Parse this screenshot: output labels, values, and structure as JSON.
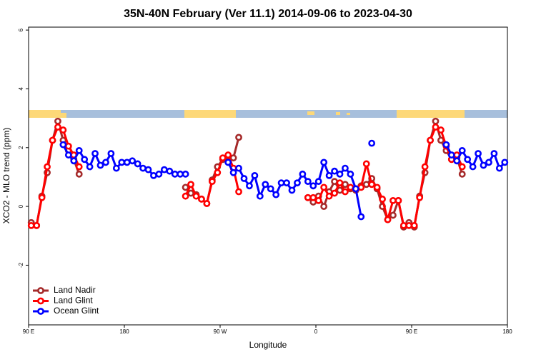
{
  "chart_data": {
    "type": "line",
    "title": "35N-40N February (Ver 11.1)   2014-09-06 to 2023-04-30",
    "x_label": "Longitude",
    "y_label": "XCO2 - MLO trend (ppm)",
    "x": [
      92.5,
      97.5,
      102.5,
      107.5,
      112.5,
      117.5,
      122.5,
      127.5,
      132.5,
      137.5,
      142.5,
      147.5,
      152.5,
      157.5,
      162.5,
      167.5,
      172.5,
      177.5,
      182.5,
      187.5,
      192.5,
      197.5,
      202.5,
      207.5,
      212.5,
      217.5,
      222.5,
      227.5,
      232.5,
      237.5,
      242.5,
      247.5,
      252.5,
      257.5,
      262.5,
      267.5,
      272.5,
      277.5,
      282.5,
      287.5,
      292.5,
      297.5,
      302.5,
      307.5,
      312.5,
      317.5,
      322.5,
      327.5,
      332.5,
      337.5,
      342.5,
      347.5,
      352.5,
      357.5,
      362.5,
      367.5,
      372.5,
      377.5,
      382.5,
      387.5,
      392.5,
      397.5,
      402.5,
      407.5,
      412.5,
      417.5,
      422.5,
      427.5,
      432.5,
      437.5,
      442.5,
      447.5,
      452.5,
      457.5,
      462.5,
      467.5,
      472.5,
      477.5,
      482.5,
      487.5,
      492.5,
      497.5,
      502.5,
      507.5,
      512.5,
      517.5,
      522.5,
      527.5,
      532.5,
      537.5
    ],
    "series": [
      {
        "name": "Land Nadir",
        "color": "#a52a2a",
        "values": [
          -0.55,
          -0.65,
          0.35,
          1.15,
          2.25,
          2.9,
          2.25,
          1.9,
          1.6,
          1.1,
          null,
          null,
          null,
          null,
          null,
          null,
          null,
          null,
          null,
          null,
          null,
          null,
          null,
          null,
          null,
          null,
          null,
          null,
          null,
          0.65,
          0.45,
          0.4,
          0.25,
          0.1,
          0.9,
          1.35,
          1.6,
          1.55,
          1.65,
          2.35,
          null,
          null,
          null,
          null,
          null,
          null,
          null,
          null,
          null,
          null,
          null,
          null,
          0.3,
          0.15,
          0.35,
          0.0,
          0.5,
          0.85,
          0.55,
          0.75,
          0.6,
          0.55,
          0.7,
          0.75,
          0.95,
          0.6,
          0.0,
          -0.45,
          -0.3,
          0.2,
          -0.7,
          -0.55,
          -0.7,
          0.35,
          1.15,
          2.25,
          2.9,
          2.25,
          1.9,
          1.6,
          1.65,
          1.1,
          null,
          null,
          null,
          null,
          null,
          null,
          null,
          null
        ]
      },
      {
        "name": "Land Glint",
        "color": "#ff0000",
        "values": [
          -0.65,
          -0.65,
          0.3,
          1.35,
          2.25,
          2.7,
          2.6,
          2.05,
          1.75,
          1.35,
          null,
          null,
          null,
          null,
          null,
          null,
          null,
          null,
          null,
          null,
          null,
          null,
          null,
          null,
          null,
          null,
          null,
          null,
          null,
          0.35,
          0.75,
          0.35,
          0.25,
          0.1,
          0.85,
          1.15,
          1.65,
          1.75,
          1.3,
          0.5,
          null,
          null,
          null,
          null,
          null,
          null,
          null,
          null,
          null,
          null,
          null,
          null,
          0.3,
          0.3,
          0.2,
          0.65,
          0.35,
          0.45,
          0.8,
          0.5,
          0.65,
          0.6,
          0.65,
          1.45,
          0.75,
          0.65,
          0.25,
          -0.45,
          0.2,
          0.2,
          -0.65,
          -0.65,
          -0.65,
          0.3,
          1.35,
          2.25,
          2.7,
          2.6,
          2.05,
          1.6,
          1.75,
          1.35,
          null,
          null,
          null,
          null,
          null,
          null,
          null,
          null
        ]
      },
      {
        "name": "Ocean Glint",
        "color": "#0000ff",
        "values": [
          null,
          null,
          null,
          null,
          null,
          null,
          2.1,
          1.75,
          1.55,
          1.9,
          1.6,
          1.35,
          1.8,
          1.4,
          1.5,
          1.8,
          1.3,
          1.5,
          1.5,
          1.55,
          1.45,
          1.3,
          1.25,
          1.05,
          1.1,
          1.25,
          1.2,
          1.1,
          1.1,
          1.1,
          null,
          null,
          null,
          null,
          null,
          null,
          null,
          1.5,
          1.15,
          1.3,
          0.95,
          0.7,
          1.05,
          0.35,
          0.75,
          0.6,
          0.4,
          0.8,
          0.8,
          0.55,
          0.8,
          1.1,
          0.85,
          0.7,
          0.85,
          1.5,
          1.05,
          1.2,
          1.1,
          1.3,
          1.1,
          0.6,
          -0.35,
          null,
          2.15,
          null,
          null,
          null,
          null,
          null,
          null,
          null,
          null,
          null,
          null,
          null,
          null,
          null,
          2.1,
          1.75,
          1.55,
          1.9,
          1.6,
          1.35,
          1.8,
          1.4,
          1.5,
          1.8,
          1.3,
          1.5
        ]
      }
    ],
    "xlim": [
      90,
      540
    ],
    "xticks": [
      {
        "value": 90,
        "label": "90 E"
      },
      180,
      {
        "value": 270,
        "label": "90 W"
      },
      {
        "value": 360,
        "label": "0"
      },
      {
        "value": 450,
        "label": "90 E"
      },
      {
        "value": 540,
        "label": "180"
      }
    ],
    "ylim": [
      -4.03,
      6.1
    ],
    "yticks": [
      -2,
      0,
      2,
      4,
      6
    ],
    "legend": "bottom left"
  }
}
